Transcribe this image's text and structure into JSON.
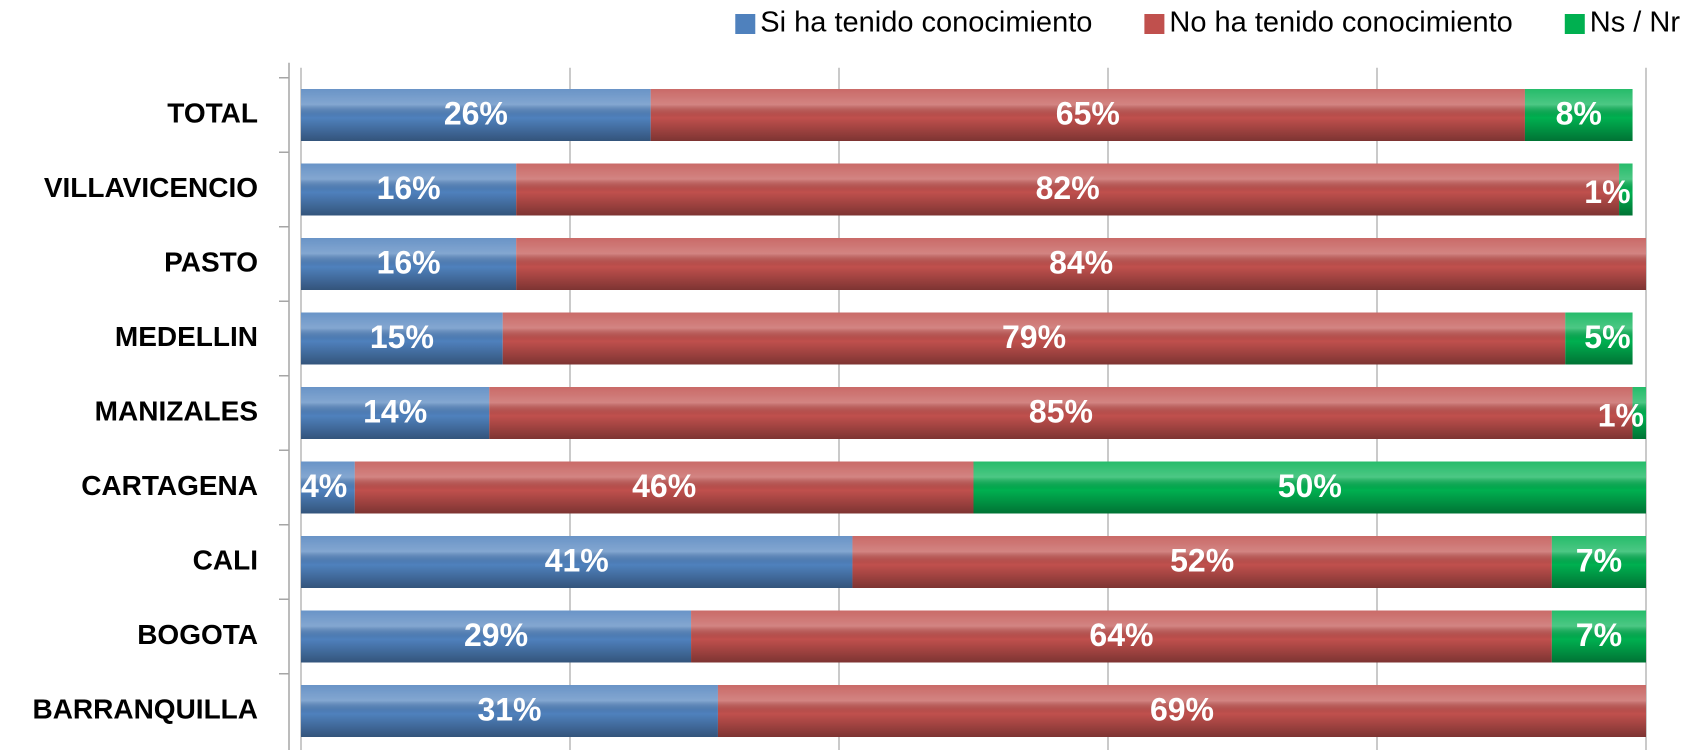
{
  "chart_data": {
    "type": "stacked_barh",
    "categories": [
      "TOTAL",
      "VILLAVICENCIO",
      "PASTO",
      "MEDELLIN",
      "MANIZALES",
      "CARTAGENA",
      "CALI",
      "BOGOTA",
      "BARRANQUILLA"
    ],
    "series": [
      {
        "name": "Si ha tenido conocimiento",
        "color": "#4f81bd",
        "values": [
          26,
          16,
          16,
          15,
          14,
          4,
          41,
          29,
          31
        ],
        "value_labels": [
          "26%",
          "16%",
          "16%",
          "15%",
          "14%",
          "4%",
          "41%",
          "29%",
          "31%"
        ]
      },
      {
        "name": "No ha tenido conocimiento",
        "color": "#c0504d",
        "values": [
          65,
          82,
          84,
          79,
          85,
          46,
          52,
          64,
          69
        ],
        "value_labels": [
          "65%",
          "82%",
          "84%",
          "79%",
          "85%",
          "46%",
          "52%",
          "64%",
          "69%"
        ]
      },
      {
        "name": "Ns / Nr",
        "color": "#00b050",
        "values": [
          8,
          1,
          null,
          5,
          1,
          50,
          7,
          7,
          null
        ],
        "value_labels": [
          "8%",
          "1%",
          null,
          "5%",
          "1%",
          "50%",
          "7%",
          "7%",
          null
        ]
      }
    ],
    "xlim": [
      0,
      100
    ],
    "xticks": [
      0,
      20,
      40,
      60,
      80,
      100
    ],
    "grid": true,
    "legend": "top"
  }
}
